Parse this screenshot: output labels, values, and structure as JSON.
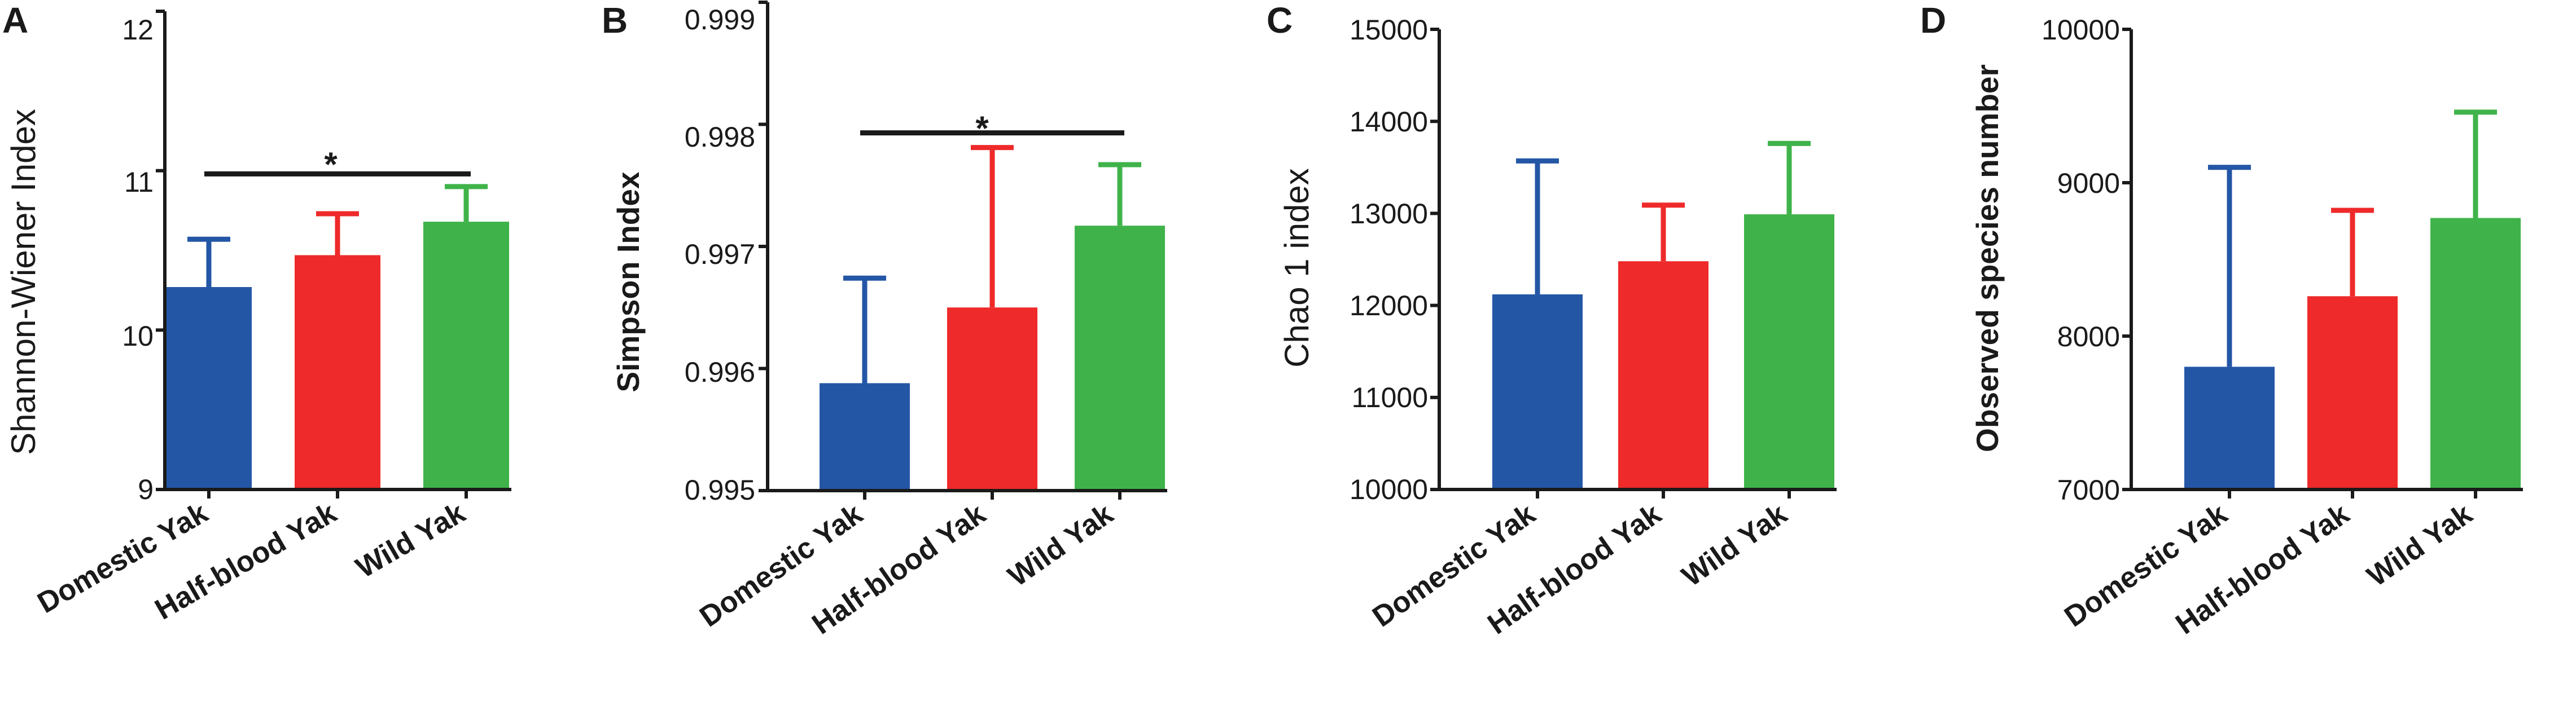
{
  "colors": {
    "domestic": "#2456a6",
    "halfblood": "#ee2a2a",
    "wild": "#3fb34a",
    "axis": "#1a1a1a"
  },
  "chart_data": [
    {
      "type": "bar",
      "panel": "A",
      "categories": [
        "Domestic Yak",
        "Half-blood Yak",
        "Wild Yak"
      ],
      "values": [
        10.27,
        10.47,
        10.68
      ],
      "errors": [
        0.3,
        0.26,
        0.22
      ],
      "ylabel": "Shannon-Wiener Index",
      "ylabel_style": "light",
      "ylim": [
        9,
        12
      ],
      "yticks": [
        "9",
        "10",
        "11",
        "12"
      ],
      "significance": {
        "from": 0,
        "to": 2,
        "y": 10.98,
        "label": "*"
      }
    },
    {
      "type": "bar",
      "panel": "B",
      "categories": [
        "Domestic Yak",
        "Half-blood Yak",
        "Wild Yak"
      ],
      "values": [
        0.99588,
        0.9965,
        0.99717
      ],
      "errors": [
        0.00086,
        0.00131,
        0.0005
      ],
      "ylabel": "Simpson Index",
      "ylabel_style": "bold",
      "ylim": [
        0.995,
        0.999
      ],
      "yticks": [
        "0.995",
        "0.996",
        "0.997",
        "0.998",
        "0.999"
      ],
      "significance": {
        "from": 0,
        "to": 2,
        "y": 0.99793,
        "label": "*"
      }
    },
    {
      "type": "bar",
      "panel": "C",
      "categories": [
        "Domestic Yak",
        "Half-blood Yak",
        "Wild Yak"
      ],
      "values": [
        12120,
        12480,
        12990
      ],
      "errors": [
        1450,
        610,
        770
      ],
      "ylabel": "Chao 1 index",
      "ylabel_style": "light",
      "ylim": [
        10000,
        15000
      ],
      "yticks": [
        "10000",
        "11000",
        "12000",
        "13000",
        "14000",
        "15000"
      ],
      "significance": null
    },
    {
      "type": "bar",
      "panel": "D",
      "categories": [
        "Domestic Yak",
        "Half-blood Yak",
        "Wild Yak"
      ],
      "values": [
        7800,
        8260,
        8770
      ],
      "errors": [
        1300,
        560,
        690
      ],
      "ylabel": "Observed species number",
      "ylabel_style": "bold",
      "ylim": [
        7000,
        10000
      ],
      "yticks": [
        "7000",
        "8000",
        "9000",
        "10000"
      ],
      "significance": null
    }
  ]
}
